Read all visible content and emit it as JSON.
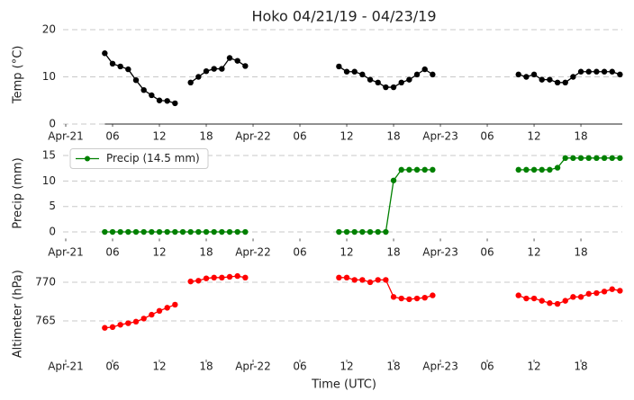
{
  "chart_data": [
    {
      "type": "line",
      "title": "Hoko 04/21/19 - 04/23/19",
      "ylabel": "Temp (°C)",
      "color": "#000000",
      "x": [
        5,
        6,
        7,
        8,
        9,
        10,
        11,
        12,
        13,
        14,
        15,
        16,
        17,
        18,
        19,
        20,
        21,
        22,
        23,
        24,
        25,
        26,
        27,
        28,
        29,
        30,
        31,
        32,
        33,
        34,
        35,
        36,
        37,
        38,
        39,
        40,
        41,
        42,
        43,
        44,
        45,
        46,
        47,
        48,
        49,
        50,
        51,
        52,
        53,
        54,
        55,
        56,
        57,
        58,
        59,
        60,
        61,
        62,
        63,
        64,
        65,
        66,
        67,
        68,
        69,
        70,
        71
      ],
      "values": [
        15,
        12.8,
        12.2,
        11.6,
        9.3,
        7.2,
        6.1,
        5,
        4.9,
        4.4,
        null,
        8.8,
        10,
        11.2,
        11.7,
        11.7,
        14,
        13.4,
        12.3,
        null,
        null,
        null,
        null,
        null,
        null,
        null,
        null,
        null,
        null,
        null,
        12.2,
        11.1,
        11.1,
        10.5,
        9.4,
        8.8,
        7.8,
        7.8,
        8.8,
        9.4,
        10.5,
        11.6,
        10.5,
        null,
        null,
        null,
        null,
        null,
        null,
        null,
        null,
        null,
        null,
        10.5,
        10,
        10.5,
        9.4,
        9.4,
        8.8,
        8.8,
        10,
        11.1,
        11.1,
        11.1,
        11.1,
        11.1,
        10.5
      ],
      "xlim": [
        0,
        71.3
      ],
      "xticks": [
        {
          "value": 0,
          "label": "Apr-21"
        },
        {
          "value": 6,
          "label": "06"
        },
        {
          "value": 12,
          "label": "12"
        },
        {
          "value": 18,
          "label": "18"
        },
        {
          "value": 24,
          "label": "Apr-22"
        },
        {
          "value": 30,
          "label": "06"
        },
        {
          "value": 36,
          "label": "12"
        },
        {
          "value": 42,
          "label": "18"
        },
        {
          "value": 48,
          "label": "Apr-23"
        },
        {
          "value": 54,
          "label": "06"
        },
        {
          "value": 60,
          "label": "12"
        },
        {
          "value": 66,
          "label": "18"
        }
      ],
      "ylim": [
        0,
        21
      ],
      "yticks": [
        0,
        10,
        20
      ],
      "grid": true
    },
    {
      "type": "line",
      "ylabel": "Precip (mm)",
      "legend": "upper left",
      "x": [
        5,
        6,
        7,
        8,
        9,
        10,
        11,
        12,
        13,
        14,
        15,
        16,
        17,
        18,
        19,
        20,
        21,
        22,
        23,
        24,
        25,
        26,
        27,
        28,
        29,
        30,
        31,
        32,
        33,
        34,
        35,
        36,
        37,
        38,
        39,
        40,
        41,
        42,
        43,
        44,
        45,
        46,
        47,
        48,
        49,
        50,
        51,
        52,
        53,
        54,
        55,
        56,
        57,
        58,
        59,
        60,
        61,
        62,
        63,
        64,
        65,
        66,
        67,
        68,
        69,
        70,
        71
      ],
      "series": [
        {
          "name": "Precip (14.5 mm)",
          "color": "#008000",
          "values": [
            0,
            0,
            0,
            0,
            0,
            0,
            0,
            0,
            0,
            0,
            0,
            0,
            0,
            0,
            0,
            0,
            0,
            0,
            0,
            null,
            null,
            null,
            null,
            null,
            null,
            null,
            null,
            null,
            null,
            null,
            0,
            0,
            0,
            0,
            0,
            0,
            0,
            10.1,
            12.2,
            12.2,
            12.2,
            12.2,
            12.2,
            null,
            null,
            null,
            null,
            null,
            null,
            null,
            null,
            null,
            null,
            12.2,
            12.2,
            12.2,
            12.2,
            12.2,
            12.6,
            14.5,
            14.5,
            14.5,
            14.5,
            14.5,
            14.5,
            14.5,
            14.5
          ]
        }
      ],
      "xlim": [
        0,
        71.3
      ],
      "xticks": [
        {
          "value": 0,
          "label": "Apr-21"
        },
        {
          "value": 6,
          "label": "06"
        },
        {
          "value": 12,
          "label": "12"
        },
        {
          "value": 18,
          "label": "18"
        },
        {
          "value": 24,
          "label": "Apr-22"
        },
        {
          "value": 30,
          "label": "06"
        },
        {
          "value": 36,
          "label": "12"
        },
        {
          "value": 42,
          "label": "18"
        },
        {
          "value": 48,
          "label": "Apr-23"
        },
        {
          "value": 54,
          "label": "06"
        },
        {
          "value": 60,
          "label": "12"
        },
        {
          "value": 66,
          "label": "18"
        }
      ],
      "ylim": [
        -1.3,
        16.5
      ],
      "yticks": [
        0,
        5,
        10,
        15
      ],
      "grid": true
    },
    {
      "type": "line",
      "ylabel": "Altimeter (hPa)",
      "xlabel": "Time (UTC)",
      "color": "#ff0000",
      "x": [
        5,
        6,
        7,
        8,
        9,
        10,
        11,
        12,
        13,
        14,
        15,
        16,
        17,
        18,
        19,
        20,
        21,
        22,
        23,
        24,
        25,
        26,
        27,
        28,
        29,
        30,
        31,
        32,
        33,
        34,
        35,
        36,
        37,
        38,
        39,
        40,
        41,
        42,
        43,
        44,
        45,
        46,
        47,
        48,
        49,
        50,
        51,
        52,
        53,
        54,
        55,
        56,
        57,
        58,
        59,
        60,
        61,
        62,
        63,
        64,
        65,
        66,
        67,
        68,
        69,
        70,
        71
      ],
      "values": [
        764.1,
        764.2,
        764.5,
        764.7,
        764.9,
        765.3,
        765.8,
        766.3,
        766.7,
        767.1,
        null,
        770.1,
        770.2,
        770.5,
        770.6,
        770.6,
        770.7,
        770.8,
        770.6,
        null,
        null,
        null,
        null,
        null,
        null,
        null,
        null,
        null,
        null,
        null,
        770.6,
        770.6,
        770.3,
        770.3,
        770,
        770.3,
        770.3,
        768.1,
        767.9,
        767.8,
        767.9,
        768,
        768.3,
        null,
        null,
        null,
        null,
        null,
        null,
        null,
        null,
        null,
        null,
        768.3,
        767.9,
        767.9,
        767.6,
        767.3,
        767.2,
        767.6,
        768.1,
        768.1,
        768.5,
        768.6,
        768.8,
        769.1,
        768.9
      ],
      "xlim": [
        0,
        71.3
      ],
      "xticks": [
        {
          "value": 0,
          "label": "Apr-21"
        },
        {
          "value": 6,
          "label": "06"
        },
        {
          "value": 12,
          "label": "12"
        },
        {
          "value": 18,
          "label": "18"
        },
        {
          "value": 24,
          "label": "Apr-22"
        },
        {
          "value": 30,
          "label": "06"
        },
        {
          "value": 36,
          "label": "12"
        },
        {
          "value": 42,
          "label": "18"
        },
        {
          "value": 48,
          "label": "Apr-23"
        },
        {
          "value": 54,
          "label": "06"
        },
        {
          "value": 60,
          "label": "12"
        },
        {
          "value": 66,
          "label": "18"
        }
      ],
      "ylim": [
        760,
        771.8
      ],
      "yticks": [
        765,
        770
      ],
      "grid": true
    }
  ]
}
